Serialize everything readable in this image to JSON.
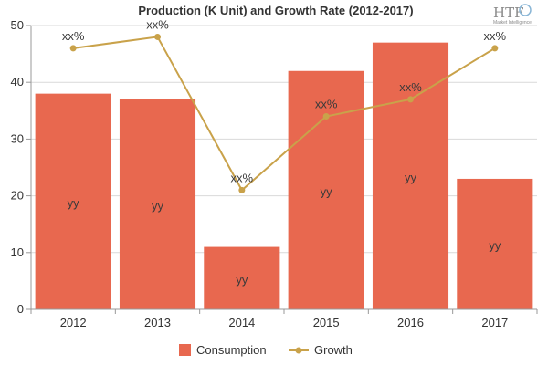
{
  "chart_data": {
    "type": "bar",
    "title": "Production (K Unit) and Growth Rate (2012-2017)",
    "categories": [
      "2012",
      "2013",
      "2014",
      "2015",
      "2016",
      "2017"
    ],
    "ylim": [
      0,
      50
    ],
    "yticks": [
      0,
      10,
      20,
      30,
      40,
      50
    ],
    "grid": "horizontal",
    "legend_position": "bottom",
    "series": [
      {
        "name": "Consumption",
        "type": "bar",
        "color": "#E8684F",
        "values": [
          38,
          37,
          11,
          42,
          47,
          23
        ],
        "labels": [
          "yy",
          "yy",
          "yy",
          "yy",
          "yy",
          "yy"
        ]
      },
      {
        "name": "Growth",
        "type": "line",
        "color": "#C9A24A",
        "values": [
          46,
          48,
          21,
          34,
          37,
          46
        ],
        "labels": [
          "xx%",
          "xx%",
          "xx%",
          "xx%",
          "xx%",
          "xx%"
        ]
      }
    ]
  },
  "logo": {
    "text": "HTF",
    "subtext": "Market Intelligence"
  }
}
